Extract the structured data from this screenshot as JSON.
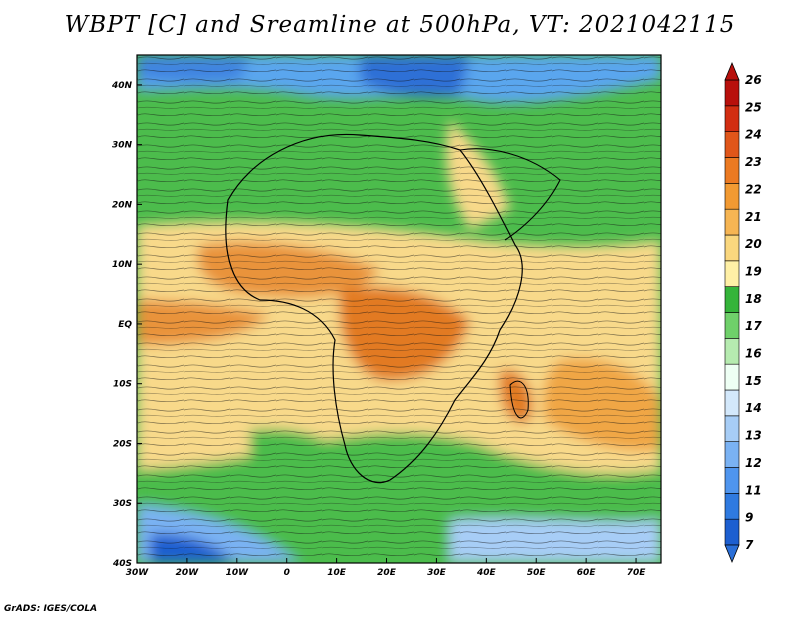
{
  "title": "WBPT [C] and Sreamline at 500hPa, VT: 2021042115",
  "credit": "GrADS: IGES/COLA",
  "map": {
    "variable": "Wet-bulb potential temperature",
    "units": "C",
    "level": "500hPa",
    "valid_time": "2021042115",
    "lon_range": [
      -30,
      75
    ],
    "lat_range": [
      -40,
      45
    ],
    "lat_labels": [
      {
        "value": 40,
        "label": "40N"
      },
      {
        "value": 30,
        "label": "30N"
      },
      {
        "value": 20,
        "label": "20N"
      },
      {
        "value": 10,
        "label": "10N"
      },
      {
        "value": 0,
        "label": "EQ"
      },
      {
        "value": -10,
        "label": "10S"
      },
      {
        "value": -20,
        "label": "20S"
      },
      {
        "value": -30,
        "label": "30S"
      },
      {
        "value": -40,
        "label": "40S"
      }
    ],
    "lon_labels": [
      {
        "value": -30,
        "label": "30W"
      },
      {
        "value": -20,
        "label": "20W"
      },
      {
        "value": -10,
        "label": "10W"
      },
      {
        "value": 0,
        "label": "0"
      },
      {
        "value": 10,
        "label": "10E"
      },
      {
        "value": 20,
        "label": "20E"
      },
      {
        "value": 30,
        "label": "30E"
      },
      {
        "value": 40,
        "label": "40E"
      },
      {
        "value": 50,
        "label": "50E"
      },
      {
        "value": 60,
        "label": "60E"
      },
      {
        "value": 70,
        "label": "70E"
      }
    ]
  },
  "colorbar": {
    "levels": [
      "7",
      "9",
      "11",
      "12",
      "13",
      "14",
      "15",
      "16",
      "17",
      "18",
      "19",
      "20",
      "21",
      "22",
      "23",
      "24",
      "25",
      "26"
    ],
    "colors": [
      "#1d5fd0",
      "#2f7ae0",
      "#4f95ee",
      "#7ab2f3",
      "#a7cdf6",
      "#d3e8fb",
      "#eefff4",
      "#b6ebb0",
      "#6fd06a",
      "#35b43a",
      "#fff0a6",
      "#fad77e",
      "#f6b553",
      "#f29a32",
      "#ec7a22",
      "#e0561a",
      "#d22e12",
      "#b8100c"
    ]
  },
  "colors": {
    "cold": "#3a78d8",
    "cool": "#4cbc4c",
    "warm": "#f8d98a",
    "hot": "#e98a2e",
    "streamline": "#101010"
  }
}
